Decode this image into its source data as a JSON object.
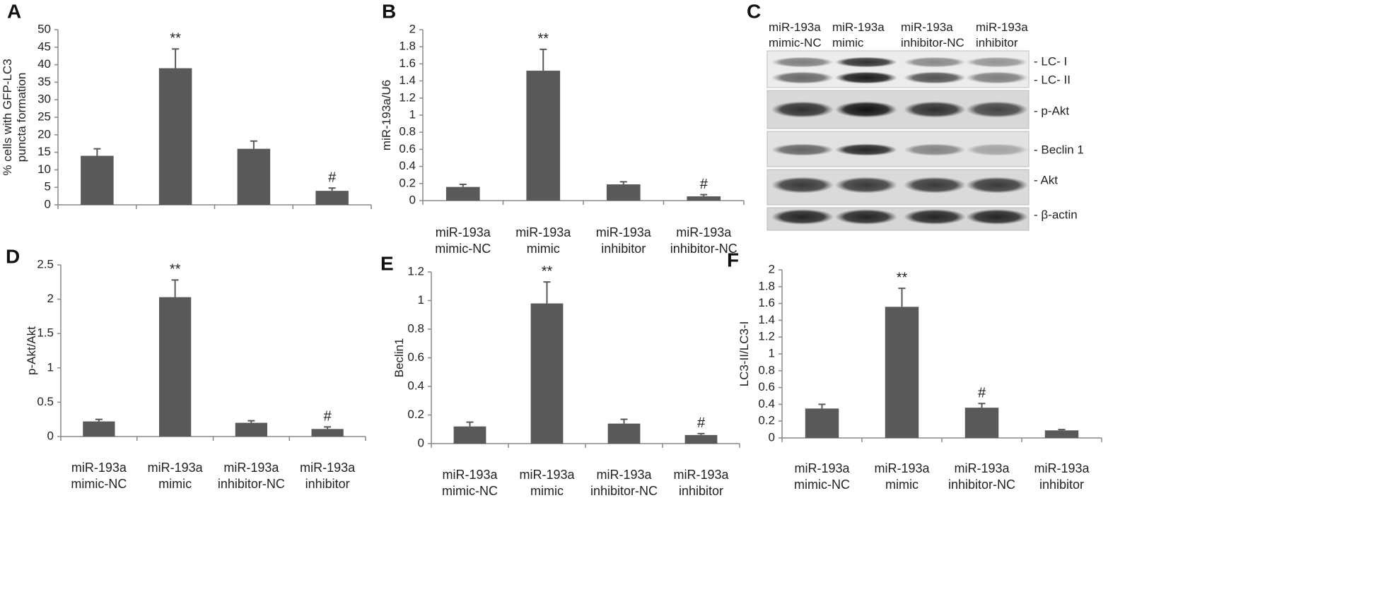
{
  "chart_data": [
    {
      "type": "bar",
      "panel_label": "A",
      "ylabel": [
        "% cells with GFP-LC3",
        "puncta formation"
      ],
      "categories": [
        null,
        null,
        null,
        null
      ],
      "values": [
        14,
        39,
        16,
        4
      ],
      "errors": [
        2,
        5.5,
        2.2,
        0.8
      ],
      "annotations": [
        null,
        "**",
        null,
        "#"
      ],
      "color": "#595959",
      "ylim": [
        0,
        50
      ],
      "yticks": [
        0,
        5,
        10,
        15,
        20,
        25,
        30,
        35,
        40,
        45,
        50
      ]
    },
    {
      "type": "bar",
      "panel_label": "B",
      "ylabel": [
        "miR-193a/U6"
      ],
      "categories": [
        [
          "miR-193a",
          "mimic-NC"
        ],
        [
          "miR-193a",
          "mimic"
        ],
        [
          "miR-193a",
          "inhibitor"
        ],
        [
          "miR-193a",
          "inhibitor-NC"
        ]
      ],
      "values": [
        0.16,
        1.52,
        0.19,
        0.05
      ],
      "errors": [
        0.03,
        0.25,
        0.03,
        0.02
      ],
      "annotations": [
        null,
        "**",
        null,
        "#"
      ],
      "color": "#595959",
      "ylim": [
        0,
        2
      ],
      "yticks": [
        0,
        0.2,
        0.4,
        0.6,
        0.8,
        1,
        1.2,
        1.4,
        1.6,
        1.8,
        2
      ]
    },
    {
      "type": "bar",
      "panel_label": "D",
      "ylabel": [
        "p-Akt/Akt"
      ],
      "categories": [
        [
          "miR-193a",
          "mimic-NC"
        ],
        [
          "miR-193a",
          "mimic"
        ],
        [
          "miR-193a",
          "inhibitor-NC"
        ],
        [
          "miR-193a",
          "inhibitor"
        ]
      ],
      "values": [
        0.22,
        2.03,
        0.2,
        0.11
      ],
      "errors": [
        0.03,
        0.25,
        0.03,
        0.03
      ],
      "annotations": [
        null,
        "**",
        null,
        "#"
      ],
      "color": "#595959",
      "ylim": [
        0,
        2.5
      ],
      "yticks": [
        0,
        0.5,
        1,
        1.5,
        2,
        2.5
      ]
    },
    {
      "type": "bar",
      "panel_label": "E",
      "ylabel": [
        "Beclin1"
      ],
      "categories": [
        [
          "miR-193a",
          "mimic-NC"
        ],
        [
          "miR-193a",
          "mimic"
        ],
        [
          "miR-193a",
          "inhibitor-NC"
        ],
        [
          "miR-193a",
          "inhibitor"
        ]
      ],
      "values": [
        0.12,
        0.98,
        0.14,
        0.06
      ],
      "errors": [
        0.03,
        0.15,
        0.03,
        0.01
      ],
      "annotations": [
        null,
        "**",
        null,
        "#"
      ],
      "color": "#595959",
      "ylim": [
        0,
        1.2
      ],
      "yticks": [
        0,
        0.2,
        0.4,
        0.6,
        0.8,
        1,
        1.2
      ]
    },
    {
      "type": "bar",
      "panel_label": "F",
      "ylabel": [
        "LC3-II/LC3-I"
      ],
      "categories": [
        [
          "miR-193a",
          "mimic-NC"
        ],
        [
          "miR-193a",
          "mimic"
        ],
        [
          "miR-193a",
          "inhibitor-NC"
        ],
        [
          "miR-193a",
          "inhibitor"
        ]
      ],
      "values": [
        0.35,
        1.56,
        0.36,
        0.09
      ],
      "errors": [
        0.05,
        0.22,
        0.05,
        0.01
      ],
      "annotations": [
        null,
        "**",
        "#",
        null
      ],
      "color": "#595959",
      "ylim": [
        0,
        2
      ],
      "yticks": [
        0,
        0.2,
        0.4,
        0.6,
        0.8,
        1,
        1.2,
        1.4,
        1.6,
        1.8,
        2
      ]
    }
  ],
  "blot": {
    "panel_label": "C",
    "lanes": [
      [
        "miR-193a",
        "mimic-NC"
      ],
      [
        "miR-193a",
        "mimic"
      ],
      [
        "miR-193a",
        "inhibitor-NC"
      ],
      [
        "miR-193a",
        "inhibitor"
      ]
    ],
    "bands": [
      "- LC- I",
      "- LC- II",
      "- p-Akt",
      "- Beclin 1",
      "- Akt",
      "- β-actin"
    ]
  }
}
